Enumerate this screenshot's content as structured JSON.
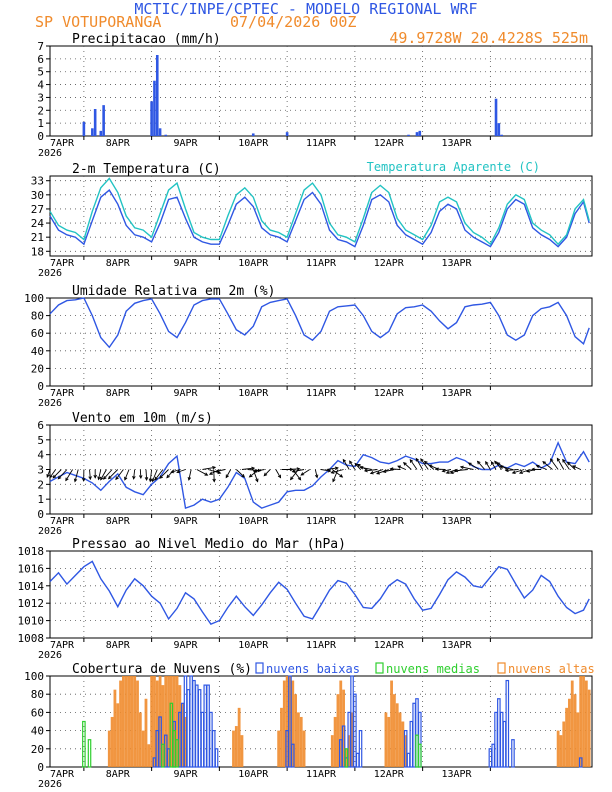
{
  "header": {
    "title": "MCTIC/INPE/CPTEC - MODELO REGIONAL WRF",
    "station": "SP VOTUPORANGA",
    "run": "07/04/2026 00Z",
    "location": "49.9728W 20.4228S 525m"
  },
  "colors": {
    "blue": "#2f57e3",
    "orange": "#f08b2c",
    "cyan": "#22c3c3",
    "green": "#2fcf2f",
    "title_blue": "#2f57e3"
  },
  "x_ticks": {
    "labels": [
      "7APR",
      "8APR",
      "9APR",
      "10APR",
      "11APR",
      "12APR",
      "13APR"
    ],
    "year": "2026"
  },
  "chart_data": [
    {
      "type": "bar",
      "title": "Precipitacao (mm/h)",
      "ylim": [
        0,
        7
      ],
      "yticks": [
        "0",
        "1",
        "2",
        "3",
        "4",
        "5",
        "6",
        "7"
      ],
      "x_hours": [
        12,
        15,
        16,
        18,
        19,
        36,
        37,
        38,
        39,
        41,
        72,
        84,
        127,
        130,
        131,
        158,
        159,
        160
      ],
      "values": [
        1.1,
        0.6,
        2.1,
        0.4,
        2.4,
        2.7,
        4.3,
        6.3,
        0.6,
        0.1,
        0.2,
        0.3,
        0.1,
        0.3,
        0.4,
        2.9,
        1.0,
        0.1
      ]
    },
    {
      "type": "line",
      "title": "2-m Temperatura (C)",
      "legend": "Temperatura Aparente (C)",
      "ylim": [
        17,
        34
      ],
      "yticks": [
        "18",
        "21",
        "24",
        "27",
        "30",
        "33"
      ],
      "series": [
        {
          "color": "blue",
          "x_hours": [
            0,
            3,
            6,
            9,
            12,
            15,
            18,
            21,
            24,
            27,
            30,
            33,
            36,
            39,
            42,
            45,
            48,
            51,
            54,
            57,
            60,
            63,
            66,
            69,
            72,
            75,
            78,
            81,
            84,
            87,
            90,
            93,
            96,
            99,
            102,
            105,
            108,
            111,
            114,
            117,
            120,
            123,
            126,
            129,
            132,
            135,
            138,
            141,
            144,
            147,
            150,
            153,
            156,
            159,
            162,
            165,
            168,
            171,
            174,
            177,
            180,
            183,
            186,
            189,
            191
          ],
          "values": [
            25.5,
            22.5,
            21.5,
            21.0,
            19.5,
            24.5,
            29.5,
            31.0,
            28.0,
            23.5,
            21.5,
            21.0,
            20.0,
            24.0,
            29.0,
            29.5,
            25.0,
            21.0,
            20.0,
            19.5,
            19.5,
            23.5,
            28.0,
            29.5,
            27.5,
            23.0,
            21.5,
            21.0,
            20.0,
            24.5,
            29.0,
            30.5,
            28.0,
            22.5,
            20.5,
            20.0,
            19.0,
            23.5,
            29.0,
            30.0,
            28.5,
            23.5,
            21.5,
            20.5,
            19.5,
            22.0,
            26.5,
            28.0,
            27.0,
            22.5,
            21.0,
            20.0,
            19.0,
            22.0,
            27.0,
            29.0,
            28.0,
            23.0,
            21.5,
            20.5,
            19.0,
            21.0,
            26.0,
            28.5,
            24.0
          ]
        },
        {
          "color": "cyan",
          "x_hours": [
            0,
            3,
            6,
            9,
            12,
            15,
            18,
            21,
            24,
            27,
            30,
            33,
            36,
            39,
            42,
            45,
            48,
            51,
            54,
            57,
            60,
            63,
            66,
            69,
            72,
            75,
            78,
            81,
            84,
            87,
            90,
            93,
            96,
            99,
            102,
            105,
            108,
            111,
            114,
            117,
            120,
            123,
            126,
            129,
            132,
            135,
            138,
            141,
            144,
            147,
            150,
            153,
            156,
            159,
            162,
            165,
            168,
            171,
            174,
            177,
            180,
            183,
            186,
            189,
            191
          ],
          "values": [
            26.5,
            23.5,
            22.5,
            22.0,
            20.5,
            26.5,
            31.5,
            33.5,
            30.5,
            25.5,
            23.0,
            22.5,
            21.0,
            26.0,
            31.0,
            32.5,
            27.0,
            22.0,
            21.0,
            20.5,
            20.5,
            25.5,
            30.0,
            31.5,
            29.5,
            24.5,
            22.5,
            22.0,
            21.0,
            26.0,
            31.0,
            32.5,
            30.0,
            24.0,
            21.5,
            21.0,
            20.0,
            25.0,
            30.5,
            32.0,
            30.5,
            25.0,
            22.5,
            21.5,
            20.5,
            23.5,
            28.5,
            29.5,
            28.5,
            24.0,
            22.0,
            21.0,
            19.5,
            23.0,
            28.0,
            30.0,
            29.0,
            24.0,
            22.5,
            21.5,
            19.5,
            21.5,
            27.0,
            29.0,
            24.5
          ]
        }
      ]
    },
    {
      "type": "line",
      "title": "Umidade Relativa em 2m (%)",
      "ylim": [
        0,
        100
      ],
      "yticks": [
        "0",
        "20",
        "40",
        "60",
        "80",
        "100"
      ],
      "x_hours": [
        0,
        3,
        6,
        9,
        12,
        15,
        18,
        21,
        24,
        27,
        30,
        33,
        36,
        39,
        42,
        45,
        48,
        51,
        54,
        57,
        60,
        63,
        66,
        69,
        72,
        75,
        78,
        81,
        84,
        87,
        90,
        93,
        96,
        99,
        102,
        105,
        108,
        111,
        114,
        117,
        120,
        123,
        126,
        129,
        132,
        135,
        138,
        141,
        144,
        147,
        150,
        153,
        156,
        159,
        162,
        165,
        168,
        171,
        174,
        177,
        180,
        183,
        186,
        189,
        191
      ],
      "values": [
        82,
        92,
        97,
        98,
        100,
        80,
        55,
        44,
        58,
        85,
        94,
        97,
        99,
        82,
        62,
        55,
        72,
        92,
        97,
        99,
        99,
        82,
        64,
        58,
        68,
        90,
        95,
        97,
        99,
        80,
        58,
        52,
        62,
        85,
        90,
        91,
        92,
        80,
        62,
        55,
        62,
        82,
        89,
        90,
        92,
        85,
        74,
        65,
        72,
        90,
        92,
        93,
        95,
        80,
        58,
        52,
        58,
        80,
        88,
        90,
        95,
        80,
        56,
        48,
        66
      ]
    },
    {
      "type": "line",
      "title": "Vento em 10m (m/s)",
      "ylim": [
        0,
        6
      ],
      "yticks": [
        "0",
        "1",
        "2",
        "3",
        "4",
        "5",
        "6"
      ],
      "x_hours": [
        0,
        3,
        6,
        9,
        12,
        15,
        18,
        21,
        24,
        27,
        30,
        33,
        36,
        39,
        42,
        45,
        48,
        51,
        54,
        57,
        60,
        63,
        66,
        69,
        72,
        75,
        78,
        81,
        84,
        87,
        90,
        93,
        96,
        99,
        102,
        105,
        108,
        111,
        114,
        117,
        120,
        123,
        126,
        129,
        132,
        135,
        138,
        141,
        144,
        147,
        150,
        153,
        156,
        159,
        162,
        165,
        168,
        171,
        174,
        177,
        180,
        183,
        186,
        189,
        191
      ],
      "values": [
        2.2,
        2.5,
        2.8,
        2.6,
        2.4,
        2.1,
        1.6,
        2.2,
        2.7,
        1.8,
        1.5,
        1.3,
        2.0,
        2.5,
        3.4,
        3.9,
        0.4,
        0.6,
        1.0,
        0.8,
        1.0,
        1.8,
        2.8,
        2.4,
        0.8,
        0.4,
        0.6,
        0.8,
        1.5,
        1.6,
        1.6,
        1.9,
        2.5,
        3.0,
        3.6,
        3.3,
        3.2,
        4.0,
        3.8,
        3.5,
        3.4,
        3.6,
        3.9,
        3.7,
        3.4,
        3.4,
        3.5,
        3.5,
        3.8,
        3.6,
        3.2,
        3.0,
        3.0,
        3.3,
        3.1,
        3.4,
        3.2,
        3.5,
        3.1,
        3.4,
        4.8,
        3.5,
        3.4,
        4.2,
        3.5
      ]
    },
    {
      "type": "line",
      "title": "Pressao ao Nivel Medio do Mar (hPa)",
      "ylim": [
        1008,
        1018
      ],
      "yticks": [
        "1008",
        "1010",
        "1012",
        "1014",
        "1016",
        "1018"
      ],
      "x_hours": [
        0,
        3,
        6,
        9,
        12,
        15,
        18,
        21,
        24,
        27,
        30,
        33,
        36,
        39,
        42,
        45,
        48,
        51,
        54,
        57,
        60,
        63,
        66,
        69,
        72,
        75,
        78,
        81,
        84,
        87,
        90,
        93,
        96,
        99,
        102,
        105,
        108,
        111,
        114,
        117,
        120,
        123,
        126,
        129,
        132,
        135,
        138,
        141,
        144,
        147,
        150,
        153,
        156,
        159,
        162,
        165,
        168,
        171,
        174,
        177,
        180,
        183,
        186,
        189,
        191
      ],
      "values": [
        1014.5,
        1015.5,
        1014.2,
        1015.2,
        1016.2,
        1016.8,
        1014.8,
        1013.4,
        1011.6,
        1013.5,
        1014.8,
        1014.0,
        1012.8,
        1012.0,
        1010.2,
        1011.4,
        1013.2,
        1012.5,
        1011.0,
        1009.6,
        1010.0,
        1011.5,
        1012.8,
        1011.6,
        1010.6,
        1011.8,
        1013.2,
        1014.4,
        1013.6,
        1012.0,
        1010.5,
        1010.2,
        1011.8,
        1013.5,
        1014.6,
        1014.3,
        1013.0,
        1011.5,
        1011.4,
        1012.5,
        1014.0,
        1014.7,
        1014.2,
        1012.5,
        1011.2,
        1011.4,
        1013.0,
        1014.7,
        1015.6,
        1015.0,
        1014.0,
        1013.8,
        1015.0,
        1016.2,
        1015.9,
        1014.2,
        1012.6,
        1013.5,
        1015.2,
        1014.5,
        1012.8,
        1011.5,
        1010.8,
        1011.2,
        1012.5
      ]
    },
    {
      "type": "bar",
      "title": "Cobertura de Nuvens (%)",
      "legend": [
        "nuvens baixas",
        "nuvens medias",
        "nuvens altas"
      ],
      "ylim": [
        0,
        100
      ],
      "yticks": [
        "0",
        "20",
        "40",
        "60",
        "80",
        "100"
      ],
      "series": [
        {
          "name": "nuvens baixas",
          "color": "blue",
          "x_hours": [
            37,
            38,
            39,
            41,
            42,
            44,
            46,
            47,
            48,
            49,
            50,
            51,
            52,
            53,
            54,
            55,
            56,
            57,
            58,
            59,
            84,
            85,
            86,
            103,
            104,
            105,
            106,
            107,
            108,
            109,
            110,
            126,
            127,
            128,
            129,
            130,
            131,
            156,
            157,
            158,
            159,
            160,
            161,
            162,
            164,
            188
          ],
          "values": [
            10,
            40,
            55,
            35,
            20,
            50,
            60,
            70,
            100,
            85,
            100,
            95,
            90,
            85,
            60,
            90,
            90,
            60,
            40,
            20,
            40,
            100,
            25,
            30,
            45,
            10,
            60,
            100,
            80,
            15,
            40,
            40,
            15,
            50,
            70,
            75,
            60,
            20,
            25,
            60,
            75,
            60,
            50,
            95,
            30,
            10
          ]
        },
        {
          "name": "nuvens medias",
          "color": "green",
          "x_hours": [
            12,
            14,
            40,
            43,
            44,
            45,
            105,
            130,
            131
          ],
          "values": [
            50,
            30,
            25,
            70,
            40,
            30,
            20,
            35,
            25
          ]
        },
        {
          "name": "nuvens altas",
          "color": "orange",
          "x_hours": [
            21,
            22,
            23,
            24,
            25,
            26,
            27,
            28,
            29,
            30,
            31,
            32,
            33,
            34,
            35,
            36,
            37,
            38,
            39,
            40,
            41,
            42,
            43,
            44,
            45,
            46,
            47,
            48,
            65,
            66,
            67,
            68,
            81,
            82,
            83,
            84,
            85,
            86,
            87,
            88,
            89,
            90,
            100,
            101,
            102,
            103,
            104,
            105,
            106,
            107,
            119,
            120,
            121,
            122,
            123,
            124,
            125,
            126,
            180,
            181,
            182,
            183,
            184,
            185,
            186,
            187,
            188,
            189,
            190,
            191
          ],
          "values": [
            40,
            55,
            85,
            70,
            95,
            100,
            100,
            100,
            100,
            100,
            95,
            60,
            40,
            75,
            25,
            100,
            100,
            95,
            100,
            90,
            100,
            100,
            100,
            100,
            100,
            90,
            70,
            55,
            40,
            45,
            65,
            35,
            40,
            65,
            95,
            100,
            100,
            95,
            80,
            60,
            55,
            40,
            35,
            55,
            80,
            95,
            85,
            20,
            35,
            60,
            60,
            55,
            95,
            80,
            70,
            60,
            50,
            35,
            40,
            35,
            50,
            65,
            75,
            95,
            80,
            60,
            100,
            100,
            95,
            85
          ]
        }
      ]
    }
  ]
}
